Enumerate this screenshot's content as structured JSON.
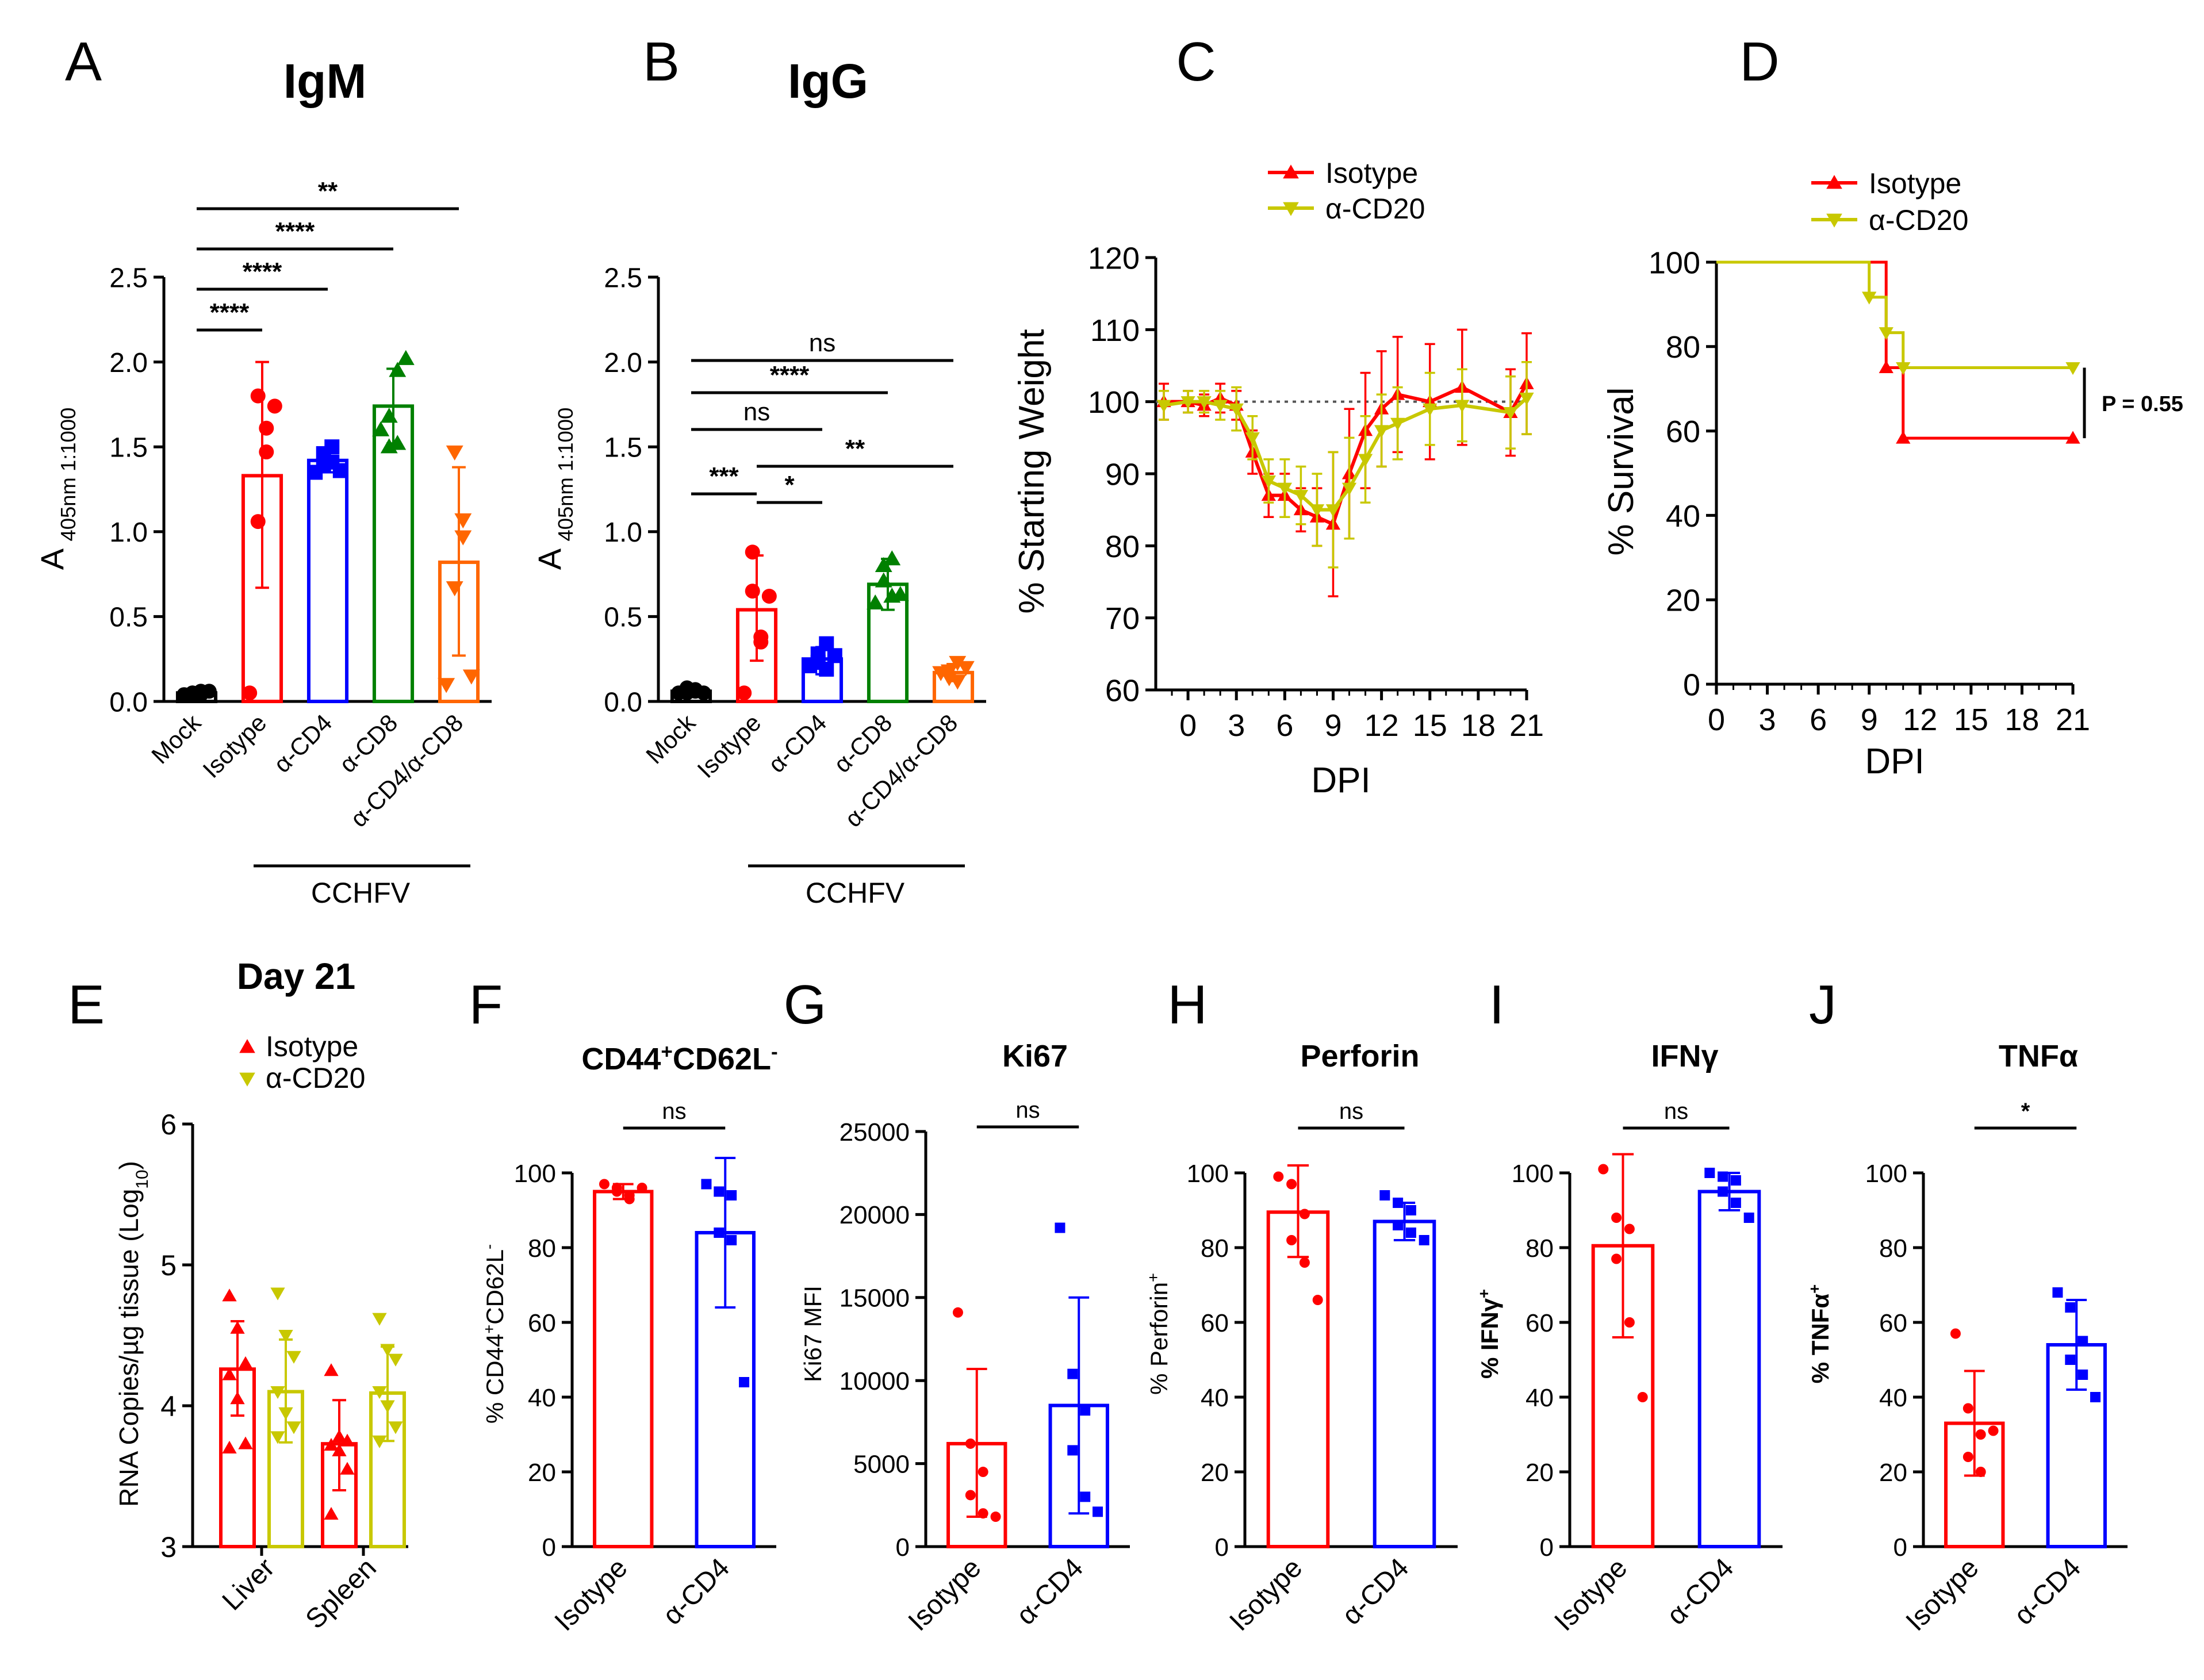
{
  "panels": {
    "A": {
      "label": "A",
      "title": "IgM",
      "ylabel": "A",
      "ylabel_sub": "405nm 1:1000",
      "ylim": [
        0,
        2.5
      ],
      "yticks": [
        "0.0",
        "0.5",
        "1.0",
        "1.5",
        "2.0",
        "2.5"
      ],
      "categories": [
        "Mock",
        "Isotype",
        "α-CD4",
        "α-CD8",
        "α-CD4/α-CD8"
      ],
      "colors": [
        "#000000",
        "#ff0000",
        "#0000ff",
        "#008000",
        "#ff6600"
      ],
      "markers": [
        "circle",
        "circle",
        "square",
        "triangle",
        "triangle-down"
      ],
      "means": [
        0.05,
        1.33,
        1.42,
        1.74,
        0.82
      ],
      "err_low": [
        0.04,
        0.67,
        1.35,
        1.52,
        0.27
      ],
      "err_high": [
        0.06,
        2.0,
        1.49,
        1.96,
        1.38
      ],
      "points": [
        [
          0.04,
          0.05,
          0.06,
          0.05,
          0.04,
          0.06
        ],
        [
          0.05,
          1.06,
          1.47,
          1.8,
          1.61,
          1.74
        ],
        [
          1.35,
          1.39,
          1.41,
          1.46,
          1.5,
          1.36
        ],
        [
          1.6,
          1.5,
          1.95,
          1.68,
          1.52,
          2.02
        ],
        [
          0.1,
          0.67,
          0.97,
          1.47,
          1.07,
          0.15
        ]
      ],
      "group_label": "CCHFV",
      "sig": [
        {
          "from": 0,
          "to": 1,
          "text": "****"
        },
        {
          "from": 0,
          "to": 2,
          "text": "****"
        },
        {
          "from": 0,
          "to": 3,
          "text": "****"
        },
        {
          "from": 0,
          "to": 4,
          "text": "**"
        }
      ]
    },
    "B": {
      "label": "B",
      "title": "IgG",
      "ylabel": "A",
      "ylabel_sub": "405nm 1:1000",
      "ylim": [
        0,
        2.5
      ],
      "yticks": [
        "0.0",
        "0.5",
        "1.0",
        "1.5",
        "2.0",
        "2.5"
      ],
      "categories": [
        "Mock",
        "Isotype",
        "α-CD4",
        "α-CD8",
        "α-CD4/α-CD8"
      ],
      "colors": [
        "#000000",
        "#ff0000",
        "#0000ff",
        "#008000",
        "#ff6600"
      ],
      "markers": [
        "circle",
        "circle",
        "square",
        "triangle",
        "triangle-down"
      ],
      "means": [
        0.06,
        0.54,
        0.25,
        0.69,
        0.17
      ],
      "err_low": [
        0.04,
        0.24,
        0.16,
        0.54,
        0.12
      ],
      "err_high": [
        0.08,
        0.86,
        0.32,
        0.84,
        0.22
      ],
      "points": [
        [
          0.05,
          0.08,
          0.06,
          0.05,
          0.07,
          0.05
        ],
        [
          0.05,
          0.65,
          0.38,
          0.88,
          0.35,
          0.62
        ],
        [
          0.21,
          0.28,
          0.34,
          0.23,
          0.19,
          0.27
        ],
        [
          0.58,
          0.8,
          0.62,
          0.71,
          0.84,
          0.63
        ],
        [
          0.17,
          0.14,
          0.23,
          0.18,
          0.12,
          0.2
        ]
      ],
      "group_label": "CCHFV",
      "sig": [
        {
          "from": 0,
          "to": 1,
          "text": "***"
        },
        {
          "from": 1,
          "to": 2,
          "text": "*"
        },
        {
          "from": 1,
          "to": 4,
          "text": "**"
        },
        {
          "from": 0,
          "to": 2,
          "text": "ns"
        },
        {
          "from": 0,
          "to": 3,
          "text": "****"
        },
        {
          "from": 0,
          "to": 4,
          "text": "ns"
        }
      ]
    },
    "C": {
      "label": "C",
      "ylabel": "% Starting Weight",
      "xlabel": "DPI",
      "ylim": [
        60,
        120
      ],
      "yticks": [
        "60",
        "70",
        "80",
        "90",
        "100",
        "110",
        "120"
      ],
      "xlim": [
        -2,
        21
      ],
      "xticks": [
        "0",
        "3",
        "6",
        "9",
        "12",
        "15",
        "18",
        "21"
      ],
      "legend": [
        "Isotype",
        "α-CD20"
      ],
      "series": [
        {
          "name": "Isotype",
          "color": "#ff0000",
          "x": [
            -1.5,
            0,
            1,
            2,
            3,
            4,
            5,
            6,
            7,
            8,
            9,
            10,
            11,
            12,
            13,
            15,
            17,
            20,
            21
          ],
          "y": [
            100,
            100,
            99.5,
            100.5,
            99.5,
            93,
            87,
            87,
            85,
            84,
            83,
            90,
            96,
            99,
            101,
            100,
            102,
            98.5,
            102.5
          ],
          "err": [
            2.5,
            1.5,
            1.5,
            2,
            2,
            3,
            3,
            3,
            3,
            4,
            10,
            9,
            8,
            8,
            8,
            8,
            8,
            6,
            7
          ]
        },
        {
          "name": "α-CD20",
          "color": "#c8c800",
          "x": [
            -1.5,
            0,
            1,
            2,
            3,
            4,
            5,
            6,
            7,
            8,
            9,
            10,
            11,
            12,
            13,
            15,
            17,
            20,
            21
          ],
          "y": [
            99.5,
            100,
            100,
            99.5,
            99,
            95,
            89,
            88,
            87,
            85,
            85,
            88,
            92,
            96,
            97,
            99,
            99.5,
            98.5,
            100.5
          ],
          "err": [
            2,
            1.5,
            1.5,
            2,
            3,
            3,
            3,
            4,
            4,
            5,
            8,
            7,
            6,
            5,
            5,
            5,
            5,
            5,
            5
          ]
        }
      ]
    },
    "D": {
      "label": "D",
      "ylabel": "% Survival",
      "xlabel": "DPI",
      "ylim": [
        0,
        100
      ],
      "yticks": [
        "0",
        "20",
        "40",
        "60",
        "80",
        "100"
      ],
      "xlim": [
        0,
        21
      ],
      "xticks": [
        "0",
        "3",
        "6",
        "9",
        "12",
        "15",
        "18",
        "21"
      ],
      "legend": [
        "Isotype",
        "α-CD20"
      ],
      "series": [
        {
          "name": "Isotype",
          "color": "#ff0000",
          "steps": [
            [
              0,
              100
            ],
            [
              10,
              100
            ],
            [
              10,
              75
            ],
            [
              11,
              75
            ],
            [
              11,
              58.3
            ],
            [
              21,
              58.3
            ]
          ],
          "markers": [
            [
              10,
              75
            ],
            [
              11,
              58.3
            ],
            [
              21,
              58.3
            ]
          ]
        },
        {
          "name": "α-CD20",
          "color": "#c8c800",
          "steps": [
            [
              0,
              100
            ],
            [
              9,
              100
            ],
            [
              9,
              91.7
            ],
            [
              10,
              91.7
            ],
            [
              10,
              83.3
            ],
            [
              11,
              83.3
            ],
            [
              11,
              75
            ],
            [
              21,
              75
            ]
          ],
          "markers": [
            [
              9,
              91.7
            ],
            [
              10,
              83.3
            ],
            [
              11,
              75
            ],
            [
              21,
              75
            ]
          ]
        }
      ],
      "annotation": "P = 0.55"
    },
    "E": {
      "label": "E",
      "title": "Day 21",
      "ylabel": "RNA Copies/µg tissue (Log",
      "ylabel_sub": "10",
      "ylabel_end": ")",
      "ylim": [
        3,
        6
      ],
      "yticks": [
        "3",
        "4",
        "5",
        "6"
      ],
      "categories": [
        "Liver",
        "Spleen"
      ],
      "legend": [
        "Isotype",
        "α-CD20"
      ],
      "series": [
        {
          "name": "Isotype",
          "color": "#ff0000",
          "marker": "triangle",
          "means": [
            4.26,
            3.73
          ],
          "err_low": [
            3.93,
            3.4
          ],
          "err_high": [
            4.6,
            4.04
          ],
          "points": [
            [
              4.78,
              4.55,
              4.3,
              4.22,
              4.05,
              3.73,
              3.7
            ],
            [
              4.25,
              3.78,
              3.75,
              3.72,
              3.68,
              3.55,
              3.23
            ]
          ]
        },
        {
          "name": "α-CD20",
          "color": "#c8c800",
          "marker": "triangle-down",
          "means": [
            4.1,
            4.09
          ],
          "err_low": [
            3.74,
            3.75
          ],
          "err_high": [
            4.47,
            4.42
          ],
          "points": [
            [
              4.8,
              4.5,
              4.35,
              4.1,
              3.95,
              3.85,
              3.78
            ],
            [
              4.62,
              4.4,
              4.33,
              4.1,
              4.0,
              3.85,
              3.75
            ]
          ]
        }
      ]
    },
    "F": {
      "label": "F",
      "title": "CD44",
      "title_sup1": "+",
      "title_mid": "CD62L",
      "title_sup2": "-",
      "ylabel": "% CD44",
      "ylabel_sup1": "+",
      "ylabel_mid": "CD62L",
      "ylabel_sup2": "-",
      "ylim": [
        0,
        100
      ],
      "yticks": [
        "0",
        "20",
        "40",
        "60",
        "80",
        "100"
      ],
      "categories": [
        "Isotype",
        "α-CD4"
      ],
      "colors": [
        "#ff0000",
        "#0000ff"
      ],
      "markers": [
        "circle",
        "square"
      ],
      "means": [
        95,
        84
      ],
      "err_low": [
        93,
        64
      ],
      "err_high": [
        97,
        104
      ],
      "points": [
        [
          97,
          96,
          94,
          95,
          93,
          96
        ],
        [
          97,
          95,
          94,
          84,
          82,
          44
        ]
      ],
      "sig": [
        {
          "from": 0,
          "to": 1,
          "text": "ns"
        }
      ]
    },
    "G": {
      "label": "G",
      "title": "Ki67",
      "ylabel": "Ki67  MFI",
      "ylim": [
        0,
        25000
      ],
      "yticks": [
        "0",
        "5000",
        "10000",
        "15000",
        "20000",
        "25000"
      ],
      "categories": [
        "Isotype",
        "α-CD4"
      ],
      "colors": [
        "#ff0000",
        "#0000ff"
      ],
      "markers": [
        "circle",
        "square"
      ],
      "means": [
        6200,
        8500
      ],
      "err_low": [
        1800,
        2000
      ],
      "err_high": [
        10700,
        15000
      ],
      "points": [
        [
          14100,
          6200,
          4500,
          3100,
          2000,
          1800
        ],
        [
          19200,
          10400,
          8200,
          5800,
          3000,
          2100
        ]
      ],
      "sig": [
        {
          "from": 0,
          "to": 1,
          "text": "ns"
        }
      ]
    },
    "H": {
      "label": "H",
      "title": "Perforin",
      "ylabel": "% Perforin",
      "ylabel_sup1": "+",
      "ylim": [
        0,
        100
      ],
      "yticks": [
        "0",
        "20",
        "40",
        "60",
        "80",
        "100"
      ],
      "categories": [
        "Isotype",
        "α-CD4"
      ],
      "colors": [
        "#ff0000",
        "#0000ff"
      ],
      "markers": [
        "circle",
        "square"
      ],
      "means": [
        89.5,
        87
      ],
      "err_low": [
        77.5,
        82
      ],
      "err_high": [
        102,
        92
      ],
      "points": [
        [
          99,
          97,
          89,
          82,
          76,
          66
        ],
        [
          94,
          92,
          90,
          86,
          84,
          82
        ]
      ],
      "sig": [
        {
          "from": 0,
          "to": 1,
          "text": "ns"
        }
      ]
    },
    "I": {
      "label": "I",
      "title": "IFNγ",
      "ylabel": "% IFNγ",
      "ylabel_sup1": "+",
      "ylim": [
        0,
        100
      ],
      "yticks": [
        "0",
        "20",
        "40",
        "60",
        "80",
        "100"
      ],
      "categories": [
        "Isotype",
        "α-CD4"
      ],
      "colors": [
        "#ff0000",
        "#0000ff"
      ],
      "markers": [
        "circle",
        "square"
      ],
      "means": [
        80.5,
        95
      ],
      "err_low": [
        56,
        90
      ],
      "err_high": [
        105,
        100
      ],
      "points": [
        [
          101,
          88,
          85,
          77,
          60,
          40
        ],
        [
          100,
          99,
          98,
          95,
          92,
          88
        ]
      ],
      "sig": [
        {
          "from": 0,
          "to": 1,
          "text": "ns"
        }
      ]
    },
    "J": {
      "label": "J",
      "title": "TNFα",
      "ylabel": "% TNFα",
      "ylabel_sup1": "+",
      "ylim": [
        0,
        100
      ],
      "yticks": [
        "0",
        "20",
        "40",
        "60",
        "80",
        "100"
      ],
      "categories": [
        "Isotype",
        "α-CD4"
      ],
      "colors": [
        "#ff0000",
        "#0000ff"
      ],
      "markers": [
        "circle",
        "square"
      ],
      "means": [
        33,
        54
      ],
      "err_low": [
        19,
        42
      ],
      "err_high": [
        47,
        66
      ],
      "points": [
        [
          57,
          37,
          30,
          24,
          20,
          31
        ],
        [
          68,
          64,
          55,
          50,
          46,
          40
        ]
      ],
      "sig": [
        {
          "from": 0,
          "to": 1,
          "text": "*"
        }
      ]
    }
  }
}
